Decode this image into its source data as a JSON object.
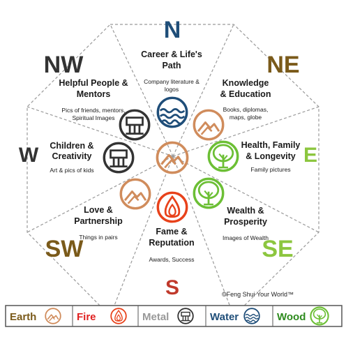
{
  "directions": {
    "n": {
      "label": "N",
      "color": "#1f4e79"
    },
    "ne": {
      "label": "NE",
      "color": "#7a5a1a"
    },
    "e": {
      "label": "E",
      "color": "#8cc63f"
    },
    "se": {
      "label": "SE",
      "color": "#8cc63f"
    },
    "s": {
      "label": "S",
      "color": "#c0392b"
    },
    "sw": {
      "label": "SW",
      "color": "#7a5a1a"
    },
    "w": {
      "label": "W",
      "color": "#333333"
    },
    "nw": {
      "label": "NW",
      "color": "#333333"
    }
  },
  "areas": {
    "career": {
      "title1": "Career & Life's",
      "title2": "Path",
      "sub1": "Company literature &",
      "sub2": "logos"
    },
    "knowledge": {
      "title1": "Knowledge",
      "title2": "& Education",
      "sub1": "Books, diplomas,",
      "sub2": "maps, globe"
    },
    "health": {
      "title1": "Health, Family",
      "title2": "& Longevity",
      "sub1": "Family pictures"
    },
    "wealth": {
      "title1": "Wealth &",
      "title2": "Prosperity",
      "sub1": "Images of Wealth"
    },
    "fame": {
      "title1": "Fame &",
      "title2": "Reputation",
      "sub1": "Awards, Success"
    },
    "love": {
      "title1": "Love &",
      "title2": "Partnership",
      "sub1": "Things in pairs"
    },
    "children": {
      "title1": "Children &",
      "title2": "Creativity",
      "sub1": "Art & pics of kids"
    },
    "helpful": {
      "title1": "Helpful People &",
      "title2": "Mentors",
      "sub1": "Pics of friends, mentors,",
      "sub2": "Spiritual Images"
    }
  },
  "copyright": "©Feng Shui Your World™",
  "legend": [
    {
      "label": "Earth",
      "color": "#7a5a1a",
      "icon": "mountain-icon"
    },
    {
      "label": "Fire",
      "color": "#e02020",
      "icon": "flame-icon"
    },
    {
      "label": "Metal",
      "color": "#999999",
      "icon": "metal-icon"
    },
    {
      "label": "Water",
      "color": "#1f4e79",
      "icon": "water-icon"
    },
    {
      "label": "Wood",
      "color": "#2e8b1e",
      "icon": "tree-icon"
    }
  ],
  "element_colors": {
    "earth": "#d08c5c",
    "fire": "#e8421b",
    "metal": "#333333",
    "water": "#1f4e79",
    "wood": "#6cbf35"
  }
}
